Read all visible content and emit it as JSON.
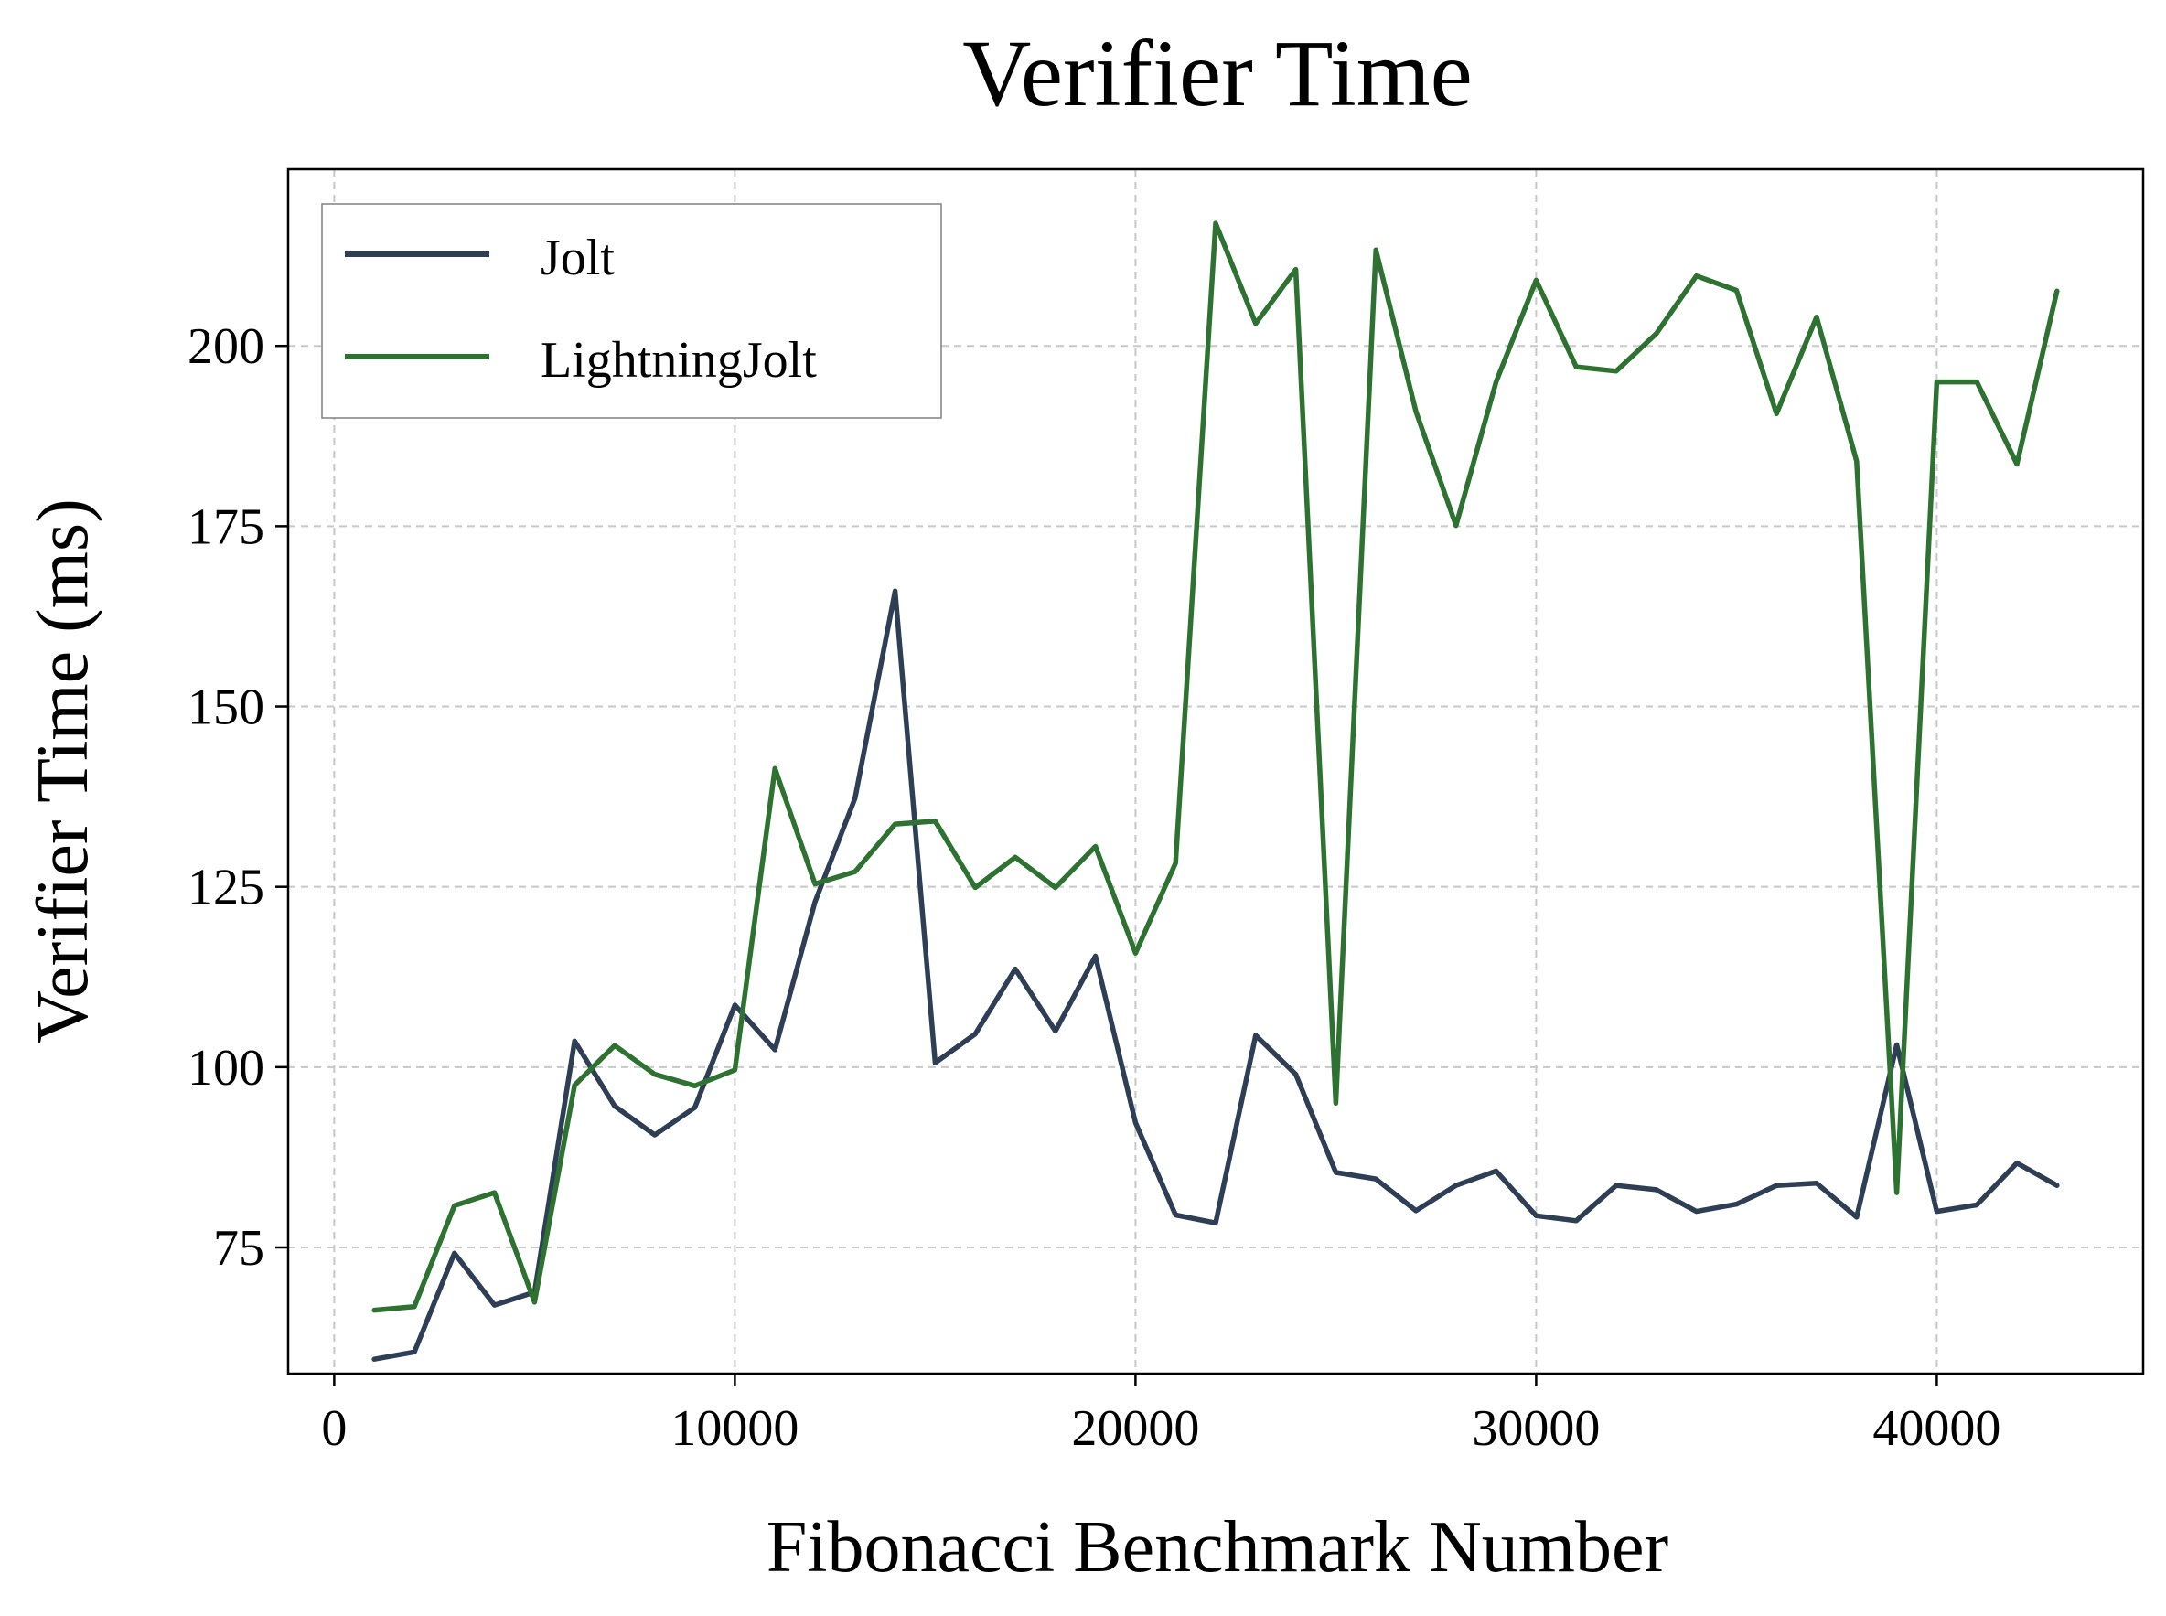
{
  "chart_data": {
    "type": "line",
    "title": "Verifier Time",
    "xlabel": "Fibonacci Benchmark Number",
    "ylabel": "Verifier Time (ms)",
    "xlim": [
      -1150,
      45150
    ],
    "ylim": [
      57.5,
      224.5
    ],
    "x_ticks": [
      0,
      10000,
      20000,
      30000,
      40000
    ],
    "x_tick_labels": [
      "0",
      "10000",
      "20000",
      "30000",
      "40000"
    ],
    "y_ticks": [
      75,
      100,
      125,
      150,
      175,
      200
    ],
    "y_tick_labels": [
      "75",
      "100",
      "125",
      "150",
      "175",
      "200"
    ],
    "grid": true,
    "legend_position": "top-left",
    "x": [
      1000,
      2000,
      3000,
      4000,
      5000,
      6000,
      7000,
      8000,
      9000,
      10000,
      11000,
      12000,
      13000,
      14000,
      15000,
      16000,
      17000,
      18000,
      19000,
      20000,
      21000,
      22000,
      23000,
      24000,
      25000,
      26000,
      27000,
      28000,
      29000,
      30000,
      31000,
      32000,
      33000,
      34000,
      35000,
      36000,
      37000,
      38000,
      39000,
      40000,
      41000,
      42000,
      43000
    ],
    "series": [
      {
        "name": "Jolt",
        "color": "#2d3e55",
        "values": [
          59.5,
          60.5,
          74.2,
          67.0,
          68.8,
          103.6,
          94.6,
          90.6,
          94.4,
          108.6,
          102.4,
          122.9,
          137.3,
          166.0,
          100.6,
          104.6,
          113.6,
          105.0,
          115.4,
          92.3,
          79.5,
          78.4,
          104.4,
          99.0,
          85.4,
          84.5,
          80.1,
          83.6,
          85.6,
          79.4,
          78.7,
          83.6,
          83.0,
          80.0,
          81.0,
          83.6,
          83.9,
          79.2,
          103.1,
          80.0,
          80.9,
          86.7,
          83.6
        ]
      },
      {
        "name": "LightningJolt",
        "color": "#2e7232",
        "values": [
          66.3,
          66.8,
          80.8,
          82.6,
          67.4,
          97.5,
          103.0,
          99.0,
          97.4,
          99.6,
          141.4,
          125.4,
          127.1,
          133.7,
          134.1,
          124.9,
          129.1,
          124.9,
          130.6,
          115.8,
          128.3,
          217.0,
          203.1,
          210.6,
          95.0,
          213.3,
          190.9,
          175.1,
          195.0,
          209.1,
          197.1,
          196.5,
          201.7,
          209.7,
          207.7,
          190.6,
          204.0,
          184.0,
          82.6,
          195.0,
          195.0,
          183.6,
          207.6
        ]
      }
    ]
  }
}
